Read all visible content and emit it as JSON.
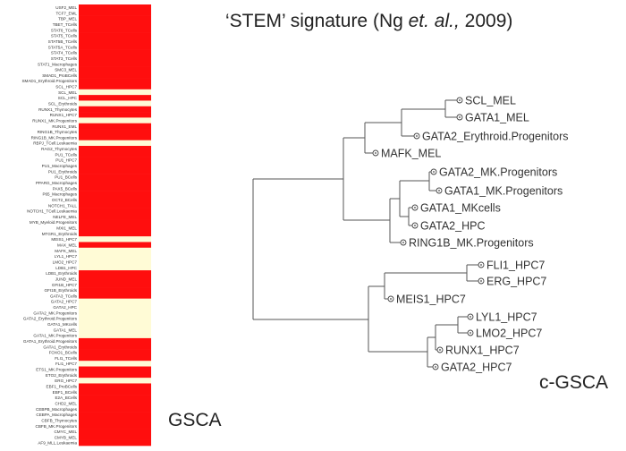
{
  "title": {
    "prefix": "‘STEM’ signature (Ng ",
    "italic": "et. al.,",
    "suffix": " 2009)"
  },
  "labels": {
    "gsca": "GSCA",
    "cgsca": "c-GSCA"
  },
  "colors": {
    "high": "#ff0e0e",
    "low": "#fffbd6",
    "line": "#555555",
    "text": "#333333"
  },
  "heatmap": {
    "rows": [
      {
        "label": "USF2_MEL",
        "state": "high"
      },
      {
        "label": "TCF7_EML",
        "state": "high"
      },
      {
        "label": "TBP_MEL",
        "state": "high"
      },
      {
        "label": "TBET_TCells",
        "state": "high"
      },
      {
        "label": "STAT6_TCells",
        "state": "high"
      },
      {
        "label": "STAT5_TCells",
        "state": "high"
      },
      {
        "label": "STAT5B_TCells",
        "state": "high"
      },
      {
        "label": "STAT5A_TCells",
        "state": "high"
      },
      {
        "label": "STAT4_TCells",
        "state": "high"
      },
      {
        "label": "STAT3_TCells",
        "state": "high"
      },
      {
        "label": "STAT1_Macrophages",
        "state": "high"
      },
      {
        "label": "SMC3_MEL",
        "state": "high"
      },
      {
        "label": "SMAD1_ProBCells",
        "state": "high"
      },
      {
        "label": "SMAD1_Erythroid.Progenitors",
        "state": "high"
      },
      {
        "label": "SCL_HPC7",
        "state": "high"
      },
      {
        "label": "SCL_MEL",
        "state": "low"
      },
      {
        "label": "SCL_HPC",
        "state": "high"
      },
      {
        "label": "SCL_Erythroids",
        "state": "low"
      },
      {
        "label": "RUNX1_Thymocytes",
        "state": "high"
      },
      {
        "label": "RUNX1_HPC7",
        "state": "high"
      },
      {
        "label": "RUNX1_MK.Progenitors",
        "state": "low"
      },
      {
        "label": "RUNX1_EML",
        "state": "high"
      },
      {
        "label": "RING1B_Thymocytes",
        "state": "high"
      },
      {
        "label": "RING1B_MK.Progenitors",
        "state": "high"
      },
      {
        "label": "RBPJ_TCell.Leukaemia",
        "state": "low"
      },
      {
        "label": "RAG2_Thymocytes",
        "state": "high"
      },
      {
        "label": "PU1_TCells",
        "state": "high"
      },
      {
        "label": "PU1_HPC7",
        "state": "high"
      },
      {
        "label": "PU1_Macrophages",
        "state": "high"
      },
      {
        "label": "PU1_Erythroids",
        "state": "high"
      },
      {
        "label": "PU1_BCells",
        "state": "high"
      },
      {
        "label": "PPARG_Macrophages",
        "state": "high"
      },
      {
        "label": "PAX5_BCells",
        "state": "high"
      },
      {
        "label": "P65_Macrophages",
        "state": "high"
      },
      {
        "label": "OCT2_BCells",
        "state": "high"
      },
      {
        "label": "NOTCH1_TALL",
        "state": "high"
      },
      {
        "label": "NOTCH1_TCell.Leukaemia",
        "state": "high"
      },
      {
        "label": "NELFE_MEL",
        "state": "high"
      },
      {
        "label": "MYB_Myeloid.Progenitors",
        "state": "high"
      },
      {
        "label": "MXI1_MEL",
        "state": "high"
      },
      {
        "label": "MTGR1_Erythroids",
        "state": "high"
      },
      {
        "label": "MEIS1_HPC7",
        "state": "low"
      },
      {
        "label": "MAX_MEL",
        "state": "high"
      },
      {
        "label": "MAFK_MEL",
        "state": "low"
      },
      {
        "label": "LYL1_HPC7",
        "state": "low"
      },
      {
        "label": "LMO2_HPC7",
        "state": "low"
      },
      {
        "label": "LDB1_HPC",
        "state": "low"
      },
      {
        "label": "LDB1_Erythroids",
        "state": "high"
      },
      {
        "label": "JUND_MEL",
        "state": "high"
      },
      {
        "label": "GFI1B_HPC7",
        "state": "high"
      },
      {
        "label": "GFI1B_Erythroids",
        "state": "high"
      },
      {
        "label": "GATA3_TCells",
        "state": "high"
      },
      {
        "label": "GATA2_HPC7",
        "state": "low"
      },
      {
        "label": "GATA2_HPC",
        "state": "low"
      },
      {
        "label": "GATA2_MK.Progenitors",
        "state": "low"
      },
      {
        "label": "GATA2_Erythroid.Progenitors",
        "state": "low"
      },
      {
        "label": "GATA1_MKcells",
        "state": "low"
      },
      {
        "label": "GATA1_MEL",
        "state": "low"
      },
      {
        "label": "GATA1_MK.Progenitors",
        "state": "low"
      },
      {
        "label": "GATA1_Erythroid.Progenitors",
        "state": "high"
      },
      {
        "label": "GATA1_Erythroids",
        "state": "high"
      },
      {
        "label": "FOXO1_BCells",
        "state": "high"
      },
      {
        "label": "FLI1_TCells",
        "state": "high"
      },
      {
        "label": "FLI1_HPC7",
        "state": "low"
      },
      {
        "label": "ETS1_MK.Progenitors",
        "state": "high"
      },
      {
        "label": "ETO2_Erythroids",
        "state": "high"
      },
      {
        "label": "ERG_HPC7",
        "state": "low"
      },
      {
        "label": "EBF1_ProBCells",
        "state": "high"
      },
      {
        "label": "EBF1_BCells",
        "state": "high"
      },
      {
        "label": "E2A_BCells",
        "state": "high"
      },
      {
        "label": "CHD2_MEL",
        "state": "high"
      },
      {
        "label": "CEBPB_Macrophages",
        "state": "high"
      },
      {
        "label": "CEBPA_Macrophages",
        "state": "high"
      },
      {
        "label": "CBFB_Thymocytes",
        "state": "high"
      },
      {
        "label": "CBFB_MK.Progenitors",
        "state": "high"
      },
      {
        "label": "CMYC_MEL",
        "state": "high"
      },
      {
        "label": "CMYB_MEL",
        "state": "high"
      },
      {
        "label": "AF9_MLL.Leukaemia",
        "state": "high"
      }
    ]
  },
  "tree": {
    "leaves": [
      {
        "id": "scl",
        "label": "SCL_MEL"
      },
      {
        "id": "gata1mel",
        "label": "GATA1_MEL"
      },
      {
        "id": "gata2ery",
        "label": "GATA2_Erythroid.Progenitors"
      },
      {
        "id": "mafk",
        "label": "MAFK_MEL"
      },
      {
        "id": "gata2mk",
        "label": "GATA2_MK.Progenitors"
      },
      {
        "id": "gata1mk",
        "label": "GATA1_MK.Progenitors"
      },
      {
        "id": "gata1mkc",
        "label": "GATA1_MKcells"
      },
      {
        "id": "gata2hpc",
        "label": "GATA2_HPC"
      },
      {
        "id": "ring1b",
        "label": "RING1B_MK.Progenitors"
      },
      {
        "id": "fli1",
        "label": "FLI1_HPC7"
      },
      {
        "id": "erg",
        "label": "ERG_HPC7"
      },
      {
        "id": "meis1",
        "label": "MEIS1_HPC7"
      },
      {
        "id": "lyl1",
        "label": "LYL1_HPC7"
      },
      {
        "id": "lmo2",
        "label": "LMO2_HPC7"
      },
      {
        "id": "runx1",
        "label": "RUNX1_HPC7"
      },
      {
        "id": "gata2hpc7",
        "label": "GATA2_HPC7"
      }
    ]
  }
}
